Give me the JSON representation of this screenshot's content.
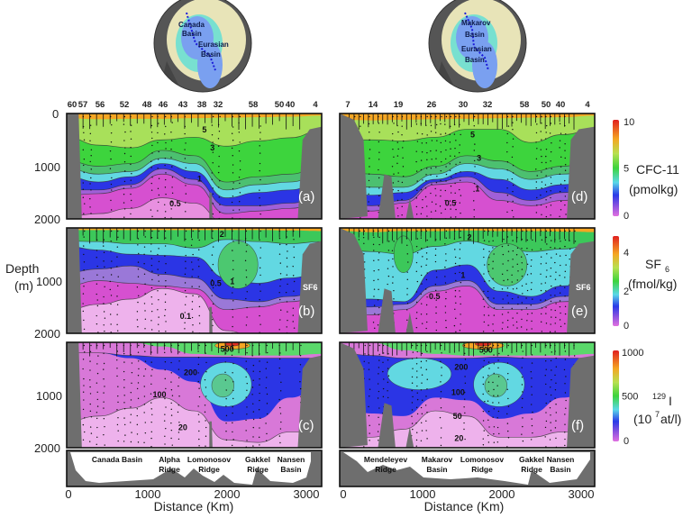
{
  "maps": [
    {
      "labels": [
        "Canada",
        "Basin",
        "Eurasian",
        "Basin"
      ]
    },
    {
      "labels": [
        "Makarov",
        "Basin",
        "Eurasian",
        "Basin"
      ]
    }
  ],
  "chart_data": {
    "type": "contour-section",
    "axes": {
      "ylabel": "Depth",
      "yunit": "(m)",
      "yticks": [
        "0",
        "1000",
        "2000"
      ],
      "ylim": [
        0,
        2000
      ],
      "xlabel": "Distance (Km)",
      "xticks": [
        "0",
        "1000",
        "2000",
        "3000"
      ],
      "xlim": [
        0,
        3200
      ]
    },
    "stations_left": [
      "60",
      "57",
      "56",
      "52",
      "48",
      "46",
      "43",
      "38",
      "32",
      "58",
      "50",
      "40",
      "4"
    ],
    "stations_right": [
      "7",
      "14",
      "19",
      "26",
      "30",
      "32",
      "58",
      "50",
      "40",
      "4"
    ],
    "panels": [
      {
        "id": "a",
        "label": "(a)",
        "tracer": "CFC-11",
        "contour_labels": [
          "5",
          "3",
          "1",
          "0.5"
        ]
      },
      {
        "id": "b",
        "label": "(b)",
        "tracer": "SF6",
        "contour_labels": [
          "2",
          "0.5",
          "1",
          "0.1"
        ]
      },
      {
        "id": "c",
        "label": "(c)",
        "tracer": "129I",
        "contour_labels": [
          "500",
          "200",
          "100",
          "20"
        ]
      },
      {
        "id": "d",
        "label": "(d)",
        "tracer": "CFC-11",
        "contour_labels": [
          "5",
          "3",
          "1",
          "0.5"
        ]
      },
      {
        "id": "e",
        "label": "(e)",
        "tracer": "SF6",
        "contour_labels": [
          "2",
          "1",
          "0.5"
        ]
      },
      {
        "id": "f",
        "label": "(f)",
        "tracer": "129I",
        "contour_labels": [
          "500",
          "200",
          "100",
          "50",
          "20"
        ]
      }
    ],
    "colorbars": [
      {
        "name": "CFC-11",
        "unit": "(pmolkg)",
        "ticks": [
          "10",
          "5",
          "0"
        ],
        "range": [
          0,
          10
        ]
      },
      {
        "name": "SF",
        "sub": "6",
        "unit": "(fmol/kg)",
        "ticks": [
          "4",
          "2",
          "0"
        ],
        "range": [
          0,
          5
        ]
      },
      {
        "name": "I",
        "sup": "129",
        "unit_pre": "(10",
        "unit_sup": "7",
        "unit_post": " at/l)",
        "ticks": [
          "1000",
          "500",
          "0"
        ],
        "range": [
          0,
          1100
        ]
      }
    ],
    "bathymetry_left": [
      [
        "Canada Basin"
      ],
      [
        "Alpha",
        "Ridge"
      ],
      [
        "Lomonosov",
        "Ridge"
      ],
      [
        "Gakkel",
        "Ridge"
      ],
      [
        "Nansen",
        "Basin"
      ]
    ],
    "bathymetry_right": [
      [
        "Mendeleyev",
        "Ridge"
      ],
      [
        "Makarov",
        "Basin"
      ],
      [
        "Lomonosov",
        "Ridge"
      ],
      [
        "Gakkel",
        "Ridge"
      ],
      [
        "Nansen",
        "Basin"
      ]
    ],
    "colors": {
      "land": "#6e6e6e",
      "orange": "#f5a623",
      "green": "#3dd43d",
      "cyan": "#62d8e2",
      "blue": "#2b35e5",
      "magenta": "#d650d0",
      "pink": "#eeb2ec"
    }
  }
}
